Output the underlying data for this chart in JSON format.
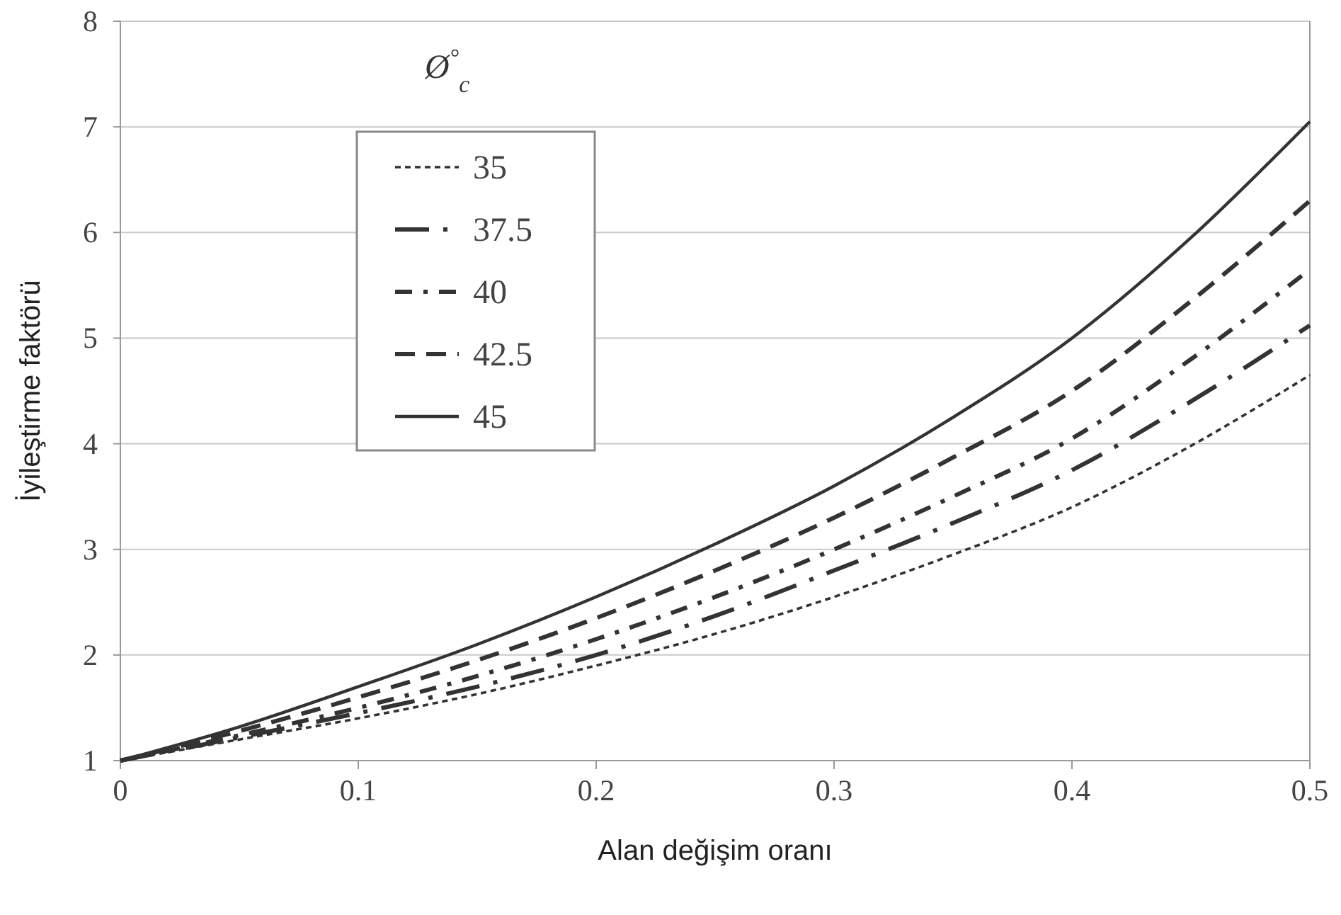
{
  "chart_data": {
    "type": "line",
    "xlabel": "Alan değişim oranı",
    "ylabel": "İyileştirme faktörü",
    "legend_title": "Ø$^{°}$$_{c}$",
    "x": [
      0,
      0.05,
      0.1,
      0.15,
      0.2,
      0.25,
      0.3,
      0.35,
      0.4,
      0.45,
      0.5
    ],
    "series": [
      {
        "name": "35",
        "color": "#333333",
        "line_style": "dotted",
        "values": [
          1,
          1.2,
          1.4,
          1.63,
          1.9,
          2.2,
          2.55,
          2.95,
          3.4,
          3.98,
          4.65
        ]
      },
      {
        "name": "37.5",
        "color": "#333333",
        "line_style": "longdashdot",
        "values": [
          1,
          1.22,
          1.45,
          1.7,
          2.0,
          2.37,
          2.8,
          3.25,
          3.75,
          4.4,
          5.12
        ]
      },
      {
        "name": "40",
        "color": "#333333",
        "line_style": "dashdot",
        "values": [
          1,
          1.24,
          1.5,
          1.8,
          2.15,
          2.55,
          3.0,
          3.5,
          4.05,
          4.8,
          5.65
        ]
      },
      {
        "name": "42.5",
        "color": "#333333",
        "line_style": "dashed",
        "values": [
          1,
          1.28,
          1.6,
          1.95,
          2.35,
          2.8,
          3.3,
          3.87,
          4.5,
          5.35,
          6.3
        ]
      },
      {
        "name": "45",
        "color": "#333333",
        "line_style": "solid",
        "values": [
          1,
          1.32,
          1.7,
          2.1,
          2.55,
          3.05,
          3.6,
          4.25,
          5.0,
          5.95,
          7.05
        ]
      }
    ],
    "xlim": [
      0,
      0.5
    ],
    "ylim": [
      1,
      8
    ],
    "xticks": [
      0,
      0.1,
      0.2,
      0.3,
      0.4,
      0.5
    ],
    "yticks": [
      1,
      2,
      3,
      4,
      5,
      6,
      7,
      8
    ],
    "grid": "y",
    "legend": "top left",
    "marker": "none"
  }
}
